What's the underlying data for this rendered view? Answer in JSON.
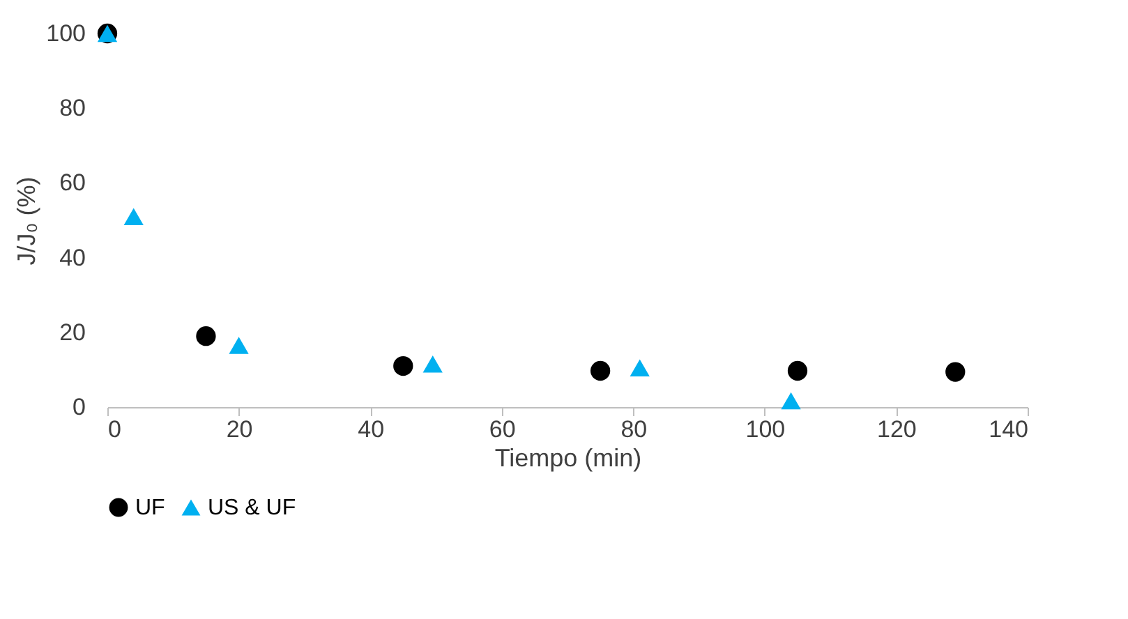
{
  "chart_data": {
    "type": "scatter",
    "xlabel": "Tiempo (min)",
    "ylabel": "J/J₀ (%)",
    "xlim": [
      0,
      140
    ],
    "xticks": [
      0,
      20,
      40,
      60,
      80,
      100,
      120,
      140
    ],
    "ylim": [
      0,
      100
    ],
    "yticks": [
      0,
      20,
      40,
      60,
      80,
      100
    ],
    "grid": false,
    "legend": "bottom",
    "series": [
      {
        "name": "UF",
        "color": "#000000",
        "marker": "circle",
        "x": [
          0,
          15,
          45,
          75,
          105,
          129
        ],
        "values": [
          100,
          19,
          11,
          9.7,
          9.7,
          9.4
        ]
      },
      {
        "name": "US & UF",
        "color": "#00b0f0",
        "marker": "triangle",
        "x": [
          0,
          4,
          20,
          49.5,
          81,
          104
        ],
        "values": [
          100,
          51,
          16.5,
          11.5,
          10.5,
          1.7
        ]
      }
    ]
  }
}
